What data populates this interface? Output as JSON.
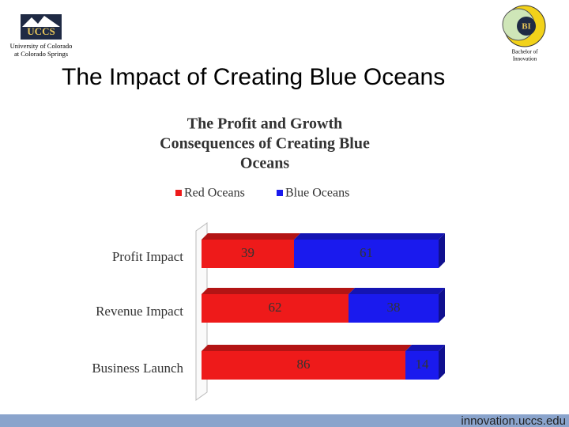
{
  "header": {
    "logo": "UCCS",
    "university": "University of Colorado",
    "campus": "at Colorado Springs",
    "badge": "BI",
    "program": [
      "Bachelor of",
      "Innovation"
    ]
  },
  "title": "The Impact of Creating Blue Oceans",
  "footer": "innovation.uccs.edu",
  "chart_data": {
    "type": "bar",
    "orientation": "horizontal",
    "stacked": true,
    "title": [
      "The Profit and Growth",
      "Consequences of Creating Blue",
      "Oceans"
    ],
    "categories": [
      "Profit Impact",
      "Revenue Impact",
      "Business Launch"
    ],
    "series": [
      {
        "name": "Red Oceans",
        "color": "#ee1a1a",
        "values": [
          39,
          62,
          86
        ]
      },
      {
        "name": "Blue Oceans",
        "color": "#1a1aee",
        "values": [
          61,
          38,
          14
        ]
      }
    ],
    "xlim": [
      0,
      100
    ],
    "legend": "top"
  }
}
